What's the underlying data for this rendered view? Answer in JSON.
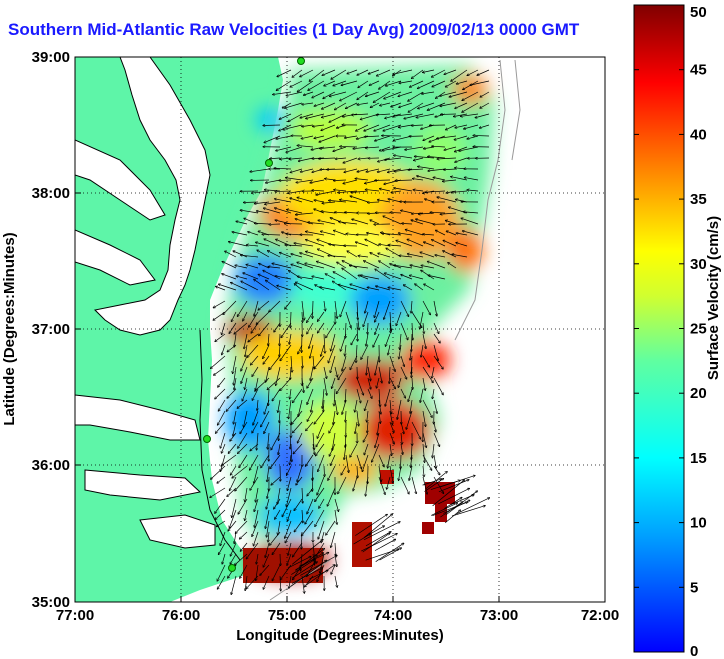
{
  "title": "Southern Mid-Atlantic Raw Velocities (1 Day Avg) 2009/02/13 0000 GMT",
  "map": {
    "xlabel": "Longitude (Degrees:Minutes)",
    "ylabel": "Latitude (Degrees:Minutes)",
    "lon_ticks": [
      "77:00",
      "76:00",
      "75:00",
      "74:00",
      "73:00",
      "72:00"
    ],
    "lat_ticks": [
      "39:00",
      "38:00",
      "37:00",
      "36:00",
      "35:00"
    ],
    "lon_range": [
      -77,
      -72
    ],
    "lat_range": [
      35,
      39
    ],
    "grid": "dotted",
    "land_color": "#5ef5a8",
    "coast_color": "#000000",
    "station_color": "#22dd22"
  },
  "colorbar": {
    "label": "Surface Velocity (cm/s)",
    "ticks": [
      "0",
      "5",
      "10",
      "15",
      "20",
      "25",
      "30",
      "35",
      "40",
      "45",
      "50"
    ],
    "range": [
      0,
      50
    ],
    "colormap": "jet"
  }
}
